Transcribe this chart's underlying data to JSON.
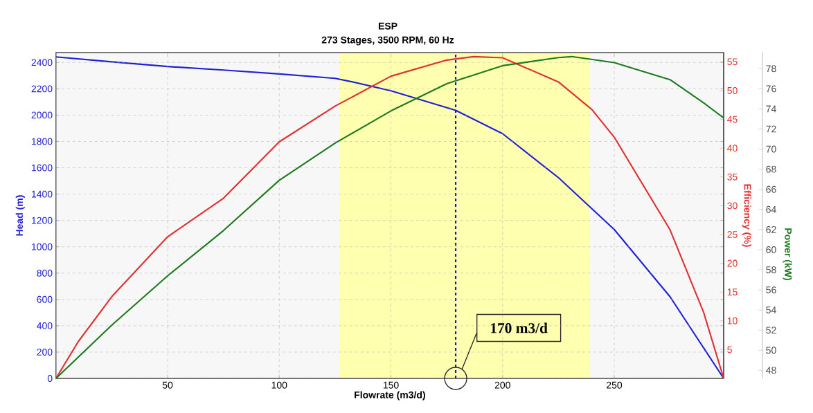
{
  "chart_data": {
    "type": "line",
    "title": "ESP",
    "subtitle": "273 Stages, 3500 RPM, 60 Hz",
    "xlabel": "Flowrate (m3/d)",
    "ylabel": "Head (m)",
    "y2label": "Efficiency (%)",
    "y3label": "Power (kW)",
    "xlim": [
      0,
      299
    ],
    "xticks": [
      50,
      100,
      150,
      200,
      250
    ],
    "ylim": [
      0,
      2475
    ],
    "yticks": [
      0,
      200,
      400,
      600,
      800,
      1000,
      1200,
      1400,
      1600,
      1800,
      2000,
      2200,
      2400
    ],
    "y2lim": [
      0,
      56.6
    ],
    "y2ticks": [
      5,
      10,
      15,
      20,
      25,
      30,
      35,
      40,
      45,
      50,
      55
    ],
    "y3lim": [
      47.2,
      79.6
    ],
    "y3ticks": [
      48,
      50,
      52,
      54,
      56,
      58,
      60,
      62,
      64,
      66,
      68,
      70,
      72,
      74,
      76,
      78
    ],
    "grid": true,
    "series": [
      {
        "color": "#2020d8",
        "axis": "y",
        "x": [
          0,
          25,
          50,
          75,
          100,
          125,
          132,
          150,
          179,
          200,
          225,
          250,
          275,
          299
        ],
        "values": [
          2442,
          2405,
          2369,
          2342,
          2313,
          2279,
          2255,
          2185,
          2036,
          1859,
          1525,
          1131,
          620,
          0
        ]
      },
      {
        "color": "#e03030",
        "axis": "y2",
        "x": [
          0,
          10,
          25,
          50,
          75,
          100,
          125,
          150,
          175,
          187,
          200,
          225,
          240,
          250,
          275,
          290,
          299
        ],
        "values": [
          0,
          6.4,
          14.2,
          24.6,
          31.3,
          41.1,
          47.3,
          52.5,
          55.3,
          55.9,
          55.7,
          51.5,
          46.7,
          41.9,
          25.8,
          11.5,
          0
        ]
      },
      {
        "color": "#1e7a1e",
        "axis": "y3",
        "x": [
          0,
          25,
          50,
          75,
          100,
          125,
          150,
          175,
          200,
          225,
          231,
          250,
          275,
          290,
          299
        ],
        "values": [
          47.2,
          52.5,
          57.4,
          61.9,
          66.9,
          70.6,
          73.8,
          76.5,
          78.3,
          79.1,
          79.2,
          78.6,
          76.9,
          74.6,
          73.1
        ]
      }
    ],
    "bands": [
      {
        "axis": "x",
        "from": 127,
        "to": 239,
        "color": "#ffffb0"
      }
    ],
    "ref_lines": [
      {
        "axis": "x",
        "value": 179,
        "label": "170 m3/d",
        "color": "#1010cc",
        "line_style": "dashed"
      }
    ]
  }
}
